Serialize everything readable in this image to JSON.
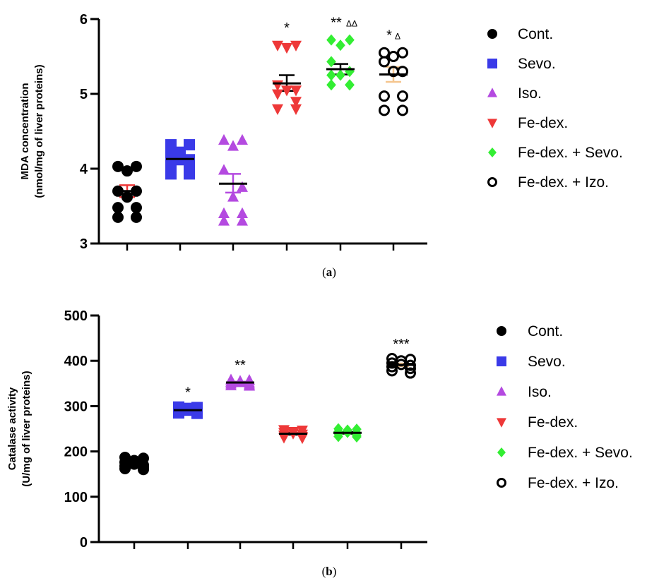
{
  "legend": [
    {
      "label": "Cont.",
      "color": "#000000",
      "marker": "circle-filled"
    },
    {
      "label": "Sevo.",
      "color": "#3a3ae8",
      "marker": "square"
    },
    {
      "label": "Iso.",
      "color": "#b44ae0",
      "marker": "triangle-up"
    },
    {
      "label": "Fe-dex.",
      "color": "#ee3838",
      "marker": "triangle-down"
    },
    {
      "label": "Fe-dex. + Sevo.",
      "color": "#33ee33",
      "marker": "diamond"
    },
    {
      "label": "Fe-dex. + Izo.",
      "color": "#000000",
      "marker": "circle-open"
    }
  ],
  "chart_data": [
    {
      "type": "scatter",
      "panel_label": "a",
      "ylabel_line1": "MDA concentration",
      "ylabel_line2": "(nmol/mg of liver proteins)",
      "ylim": [
        3,
        6
      ],
      "yticks": [
        "3",
        "4",
        "5",
        "6"
      ],
      "groups": [
        {
          "points": [
            4.03,
            4.03,
            3.97,
            3.7,
            3.62,
            3.7,
            3.48,
            3.48,
            3.35,
            3.35
          ],
          "mean": 3.7,
          "sem_low": 3.62,
          "sem_high": 3.78,
          "significance": "",
          "significance_sub": ""
        },
        {
          "points": [
            4.32,
            4.32,
            4.22,
            4.18,
            4.12,
            4.12,
            4.05,
            4.0,
            3.93,
            3.93
          ],
          "mean": 4.13,
          "sem_low": 4.08,
          "sem_high": 4.18,
          "significance": "",
          "significance_sub": ""
        },
        {
          "points": [
            4.38,
            4.38,
            4.3,
            3.98,
            3.62,
            3.75,
            3.4,
            3.4,
            3.3,
            3.3
          ],
          "mean": 3.8,
          "sem_low": 3.68,
          "sem_high": 3.93,
          "significance": "",
          "significance_sub": ""
        },
        {
          "points": [
            5.65,
            5.65,
            5.62,
            5.12,
            5.05,
            5.05,
            5.0,
            4.9,
            4.8,
            4.8
          ],
          "mean": 5.14,
          "sem_low": 5.04,
          "sem_high": 5.25,
          "significance": "*",
          "significance_sub": ""
        },
        {
          "points": [
            5.72,
            5.72,
            5.65,
            5.43,
            5.25,
            5.3,
            5.25,
            5.12,
            5.12,
            5.12
          ],
          "mean": 5.33,
          "sem_low": 5.26,
          "sem_high": 5.4,
          "significance": "**",
          "significance_sub": "ΔΔ"
        },
        {
          "points": [
            5.55,
            5.55,
            5.5,
            5.43,
            5.3,
            5.3,
            4.97,
            4.97,
            4.78,
            4.78
          ],
          "mean": 5.26,
          "sem_low": 5.16,
          "sem_high": 5.36,
          "significance": "*",
          "significance_sub": "Δ"
        }
      ]
    },
    {
      "type": "scatter",
      "panel_label": "b",
      "ylabel_line1": "Catalase activity",
      "ylabel_line2": "(U/mg of liver proteins)",
      "ylim": [
        0,
        500
      ],
      "yticks": [
        "0",
        "100",
        "200",
        "300",
        "400",
        "500"
      ],
      "groups": [
        {
          "points": [
            187,
            185,
            180,
            176,
            172,
            170,
            168,
            165,
            162,
            160
          ],
          "mean": 174,
          "sem_low": 170,
          "sem_high": 178,
          "significance": "",
          "significance_sub": ""
        },
        {
          "points": [
            298,
            297,
            295,
            293,
            291,
            290,
            289,
            287,
            285,
            284
          ],
          "mean": 291,
          "sem_low": 289,
          "sem_high": 293,
          "significance": "*",
          "significance_sub": ""
        },
        {
          "points": [
            358,
            357,
            355,
            353,
            352,
            351,
            349,
            347,
            345,
            344
          ],
          "mean": 352,
          "sem_low": 350,
          "sem_high": 354,
          "significance": "**",
          "significance_sub": ""
        },
        {
          "points": [
            248,
            247,
            244,
            242,
            240,
            238,
            236,
            233,
            231,
            230
          ],
          "mean": 239,
          "sem_low": 237,
          "sem_high": 241,
          "significance": "",
          "significance_sub": ""
        },
        {
          "points": [
            250,
            249,
            247,
            244,
            242,
            241,
            239,
            236,
            233,
            232
          ],
          "mean": 241,
          "sem_low": 239,
          "sem_high": 243,
          "significance": "",
          "significance_sub": ""
        },
        {
          "points": [
            405,
            403,
            400,
            395,
            392,
            390,
            387,
            383,
            378,
            373
          ],
          "mean": 391,
          "sem_low": 388,
          "sem_high": 394,
          "significance": "***",
          "significance_sub": ""
        }
      ]
    }
  ]
}
